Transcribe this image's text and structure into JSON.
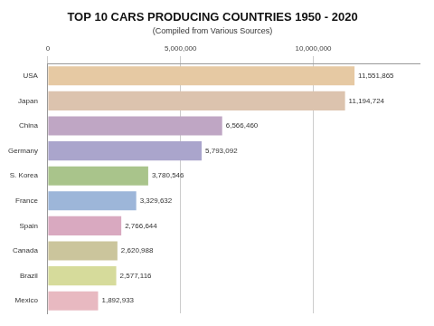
{
  "chart_data": {
    "type": "bar",
    "orientation": "horizontal",
    "title": "TOP 10 CARS PRODUCING COUNTRIES 1950 - 2020",
    "subtitle": "(Compiled from Various Sources)",
    "categories": [
      "USA",
      "Japan",
      "China",
      "Germany",
      "S. Korea",
      "France",
      "Spain",
      "Canada",
      "Brazil",
      "Mexico"
    ],
    "values": [
      11551865,
      11194724,
      6566460,
      5793092,
      3780546,
      3329632,
      2766644,
      2620988,
      2577116,
      1892933
    ],
    "value_labels": [
      "11,551,865",
      "11,194,724",
      "6,566,460",
      "5,793,092",
      "3,780,546",
      "3,329,632",
      "2,766,644",
      "2,620,988",
      "2,577,116",
      "1,892,933"
    ],
    "colors": [
      "#e6c9a3",
      "#dcc3ae",
      "#bfa6c4",
      "#aaa5cc",
      "#a9c48b",
      "#9db6d9",
      "#d9a9c0",
      "#cbc59c",
      "#d6db9b",
      "#e8b9c1"
    ],
    "xlim": [
      0,
      14000000
    ],
    "xticks": [
      0,
      {
        "value": 5000000,
        "label": "5,000,000"
      },
      {
        "value": 10000000,
        "label": "10,000,000"
      }
    ],
    "grid": true,
    "data_labels": true
  }
}
